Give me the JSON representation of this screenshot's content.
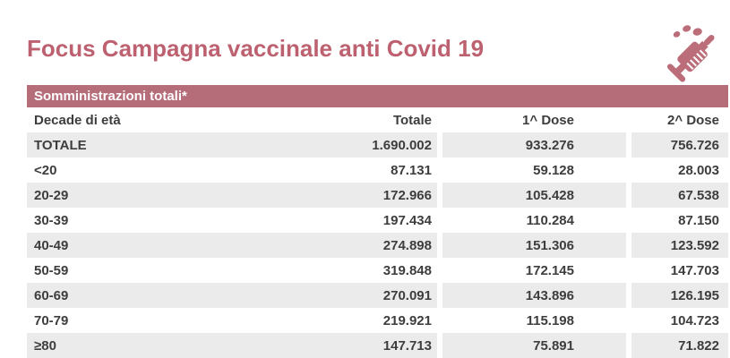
{
  "page": {
    "title": "Focus Campagna vaccinale anti Covid 19"
  },
  "icon": {
    "name": "syringe-icon"
  },
  "colors": {
    "accent_rose": "#bd6170",
    "band_rose": "#b56d7a",
    "row_stripe_gray": "#ebebeb",
    "text_dark": "#3d3d3d",
    "band_text": "#ffffff"
  },
  "chart_data": {
    "type": "table",
    "title": "Somministrazioni totali*",
    "columns": [
      "Decade di età",
      "Totale",
      "1^ Dose",
      "2^ Dose"
    ],
    "rows": [
      [
        "TOTALE",
        "1.690.002",
        "933.276",
        "756.726"
      ],
      [
        "<20",
        "87.131",
        "59.128",
        "28.003"
      ],
      [
        "20-29",
        "172.966",
        "105.428",
        "67.538"
      ],
      [
        "30-39",
        "197.434",
        "110.284",
        "87.150"
      ],
      [
        "40-49",
        "274.898",
        "151.306",
        "123.592"
      ],
      [
        "50-59",
        "319.848",
        "172.145",
        "147.703"
      ],
      [
        "60-69",
        "270.091",
        "143.896",
        "126.195"
      ],
      [
        "70-79",
        "219.921",
        "115.198",
        "104.723"
      ],
      [
        "≥80",
        "147.713",
        "75.891",
        "71.822"
      ]
    ]
  }
}
